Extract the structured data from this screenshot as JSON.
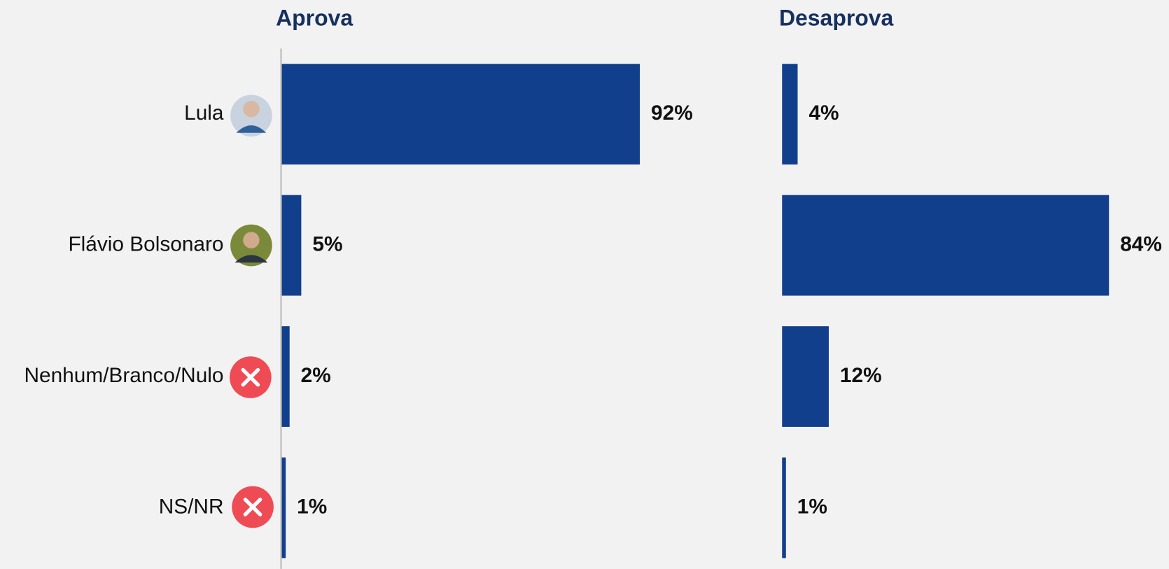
{
  "chart_data": {
    "type": "bar",
    "orientation": "horizontal",
    "categories": [
      "Lula",
      "Flávio Bolsonaro",
      "Nenhum/Branco/Nulo",
      "NS/NR"
    ],
    "series": [
      {
        "name": "Aprova",
        "color": "#123f8c",
        "values": [
          92,
          5,
          2,
          1
        ],
        "value_labels": [
          "92%",
          "5%",
          "2%",
          "1%"
        ]
      },
      {
        "name": "Desaprova",
        "color": "#123f8c",
        "values": [
          4,
          84,
          12,
          1
        ],
        "value_labels": [
          "4%",
          "84%",
          "12%",
          "1%"
        ]
      }
    ],
    "xlim": [
      0,
      100
    ]
  }
}
